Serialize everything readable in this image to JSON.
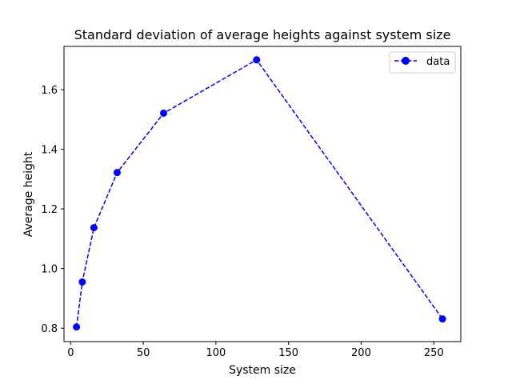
{
  "chart_data": {
    "type": "line",
    "title": "Standard deviation of average heights against system size",
    "xlabel": "System size",
    "ylabel": "Average height",
    "xlim": [
      -4.6,
      268.6
    ],
    "ylim": [
      0.755,
      1.745
    ],
    "xticks": [
      0,
      50,
      100,
      150,
      200,
      250
    ],
    "yticks": [
      0.8,
      1.0,
      1.2,
      1.4,
      1.6
    ],
    "ytick_labels": [
      "0.8",
      "1.0",
      "1.2",
      "1.4",
      "1.6"
    ],
    "grid": false,
    "legend_position": "top-right",
    "series": [
      {
        "name": "data",
        "color": "#0000ff",
        "line_style": "dashed",
        "marker": "circle",
        "x": [
          4,
          8,
          16,
          32,
          64,
          128,
          256
        ],
        "y": [
          0.804,
          0.955,
          1.137,
          1.322,
          1.521,
          1.7,
          0.831
        ]
      }
    ]
  }
}
